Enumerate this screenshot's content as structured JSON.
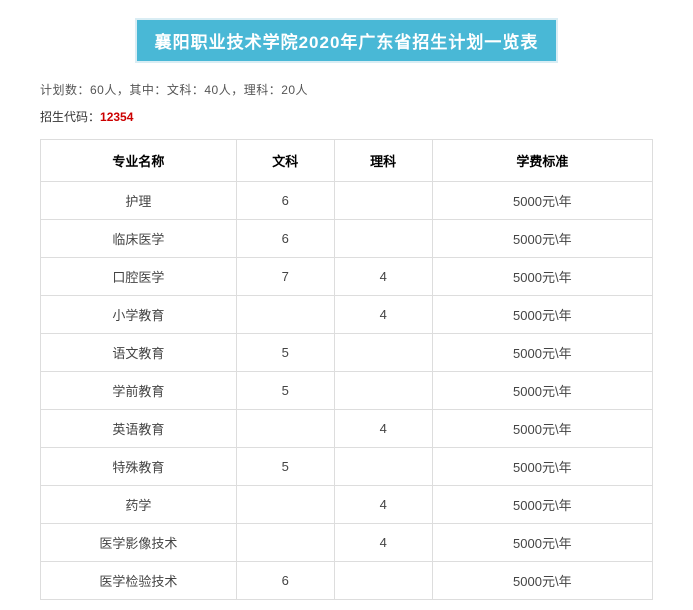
{
  "title_banner": "襄阳职业技术学院2020年广东省招生计划一览表",
  "summary_text": "计划数：60人，其中：文科：40人，理科：20人",
  "code_label": "招生代码：",
  "code_value": "12354",
  "table": {
    "columns": [
      "专业名称",
      "文科",
      "理科",
      "学费标准"
    ],
    "rows": [
      {
        "major": "护理",
        "wen": "6",
        "li": "",
        "fee": "5000元\\年"
      },
      {
        "major": "临床医学",
        "wen": "6",
        "li": "",
        "fee": "5000元\\年"
      },
      {
        "major": "口腔医学",
        "wen": "7",
        "li": "4",
        "fee": "5000元\\年"
      },
      {
        "major": "小学教育",
        "wen": "",
        "li": "4",
        "fee": "5000元\\年"
      },
      {
        "major": "语文教育",
        "wen": "5",
        "li": "",
        "fee": "5000元\\年"
      },
      {
        "major": "学前教育",
        "wen": "5",
        "li": "",
        "fee": "5000元\\年"
      },
      {
        "major": "英语教育",
        "wen": "",
        "li": "4",
        "fee": "5000元\\年"
      },
      {
        "major": "特殊教育",
        "wen": "5",
        "li": "",
        "fee": "5000元\\年"
      },
      {
        "major": "药学",
        "wen": "",
        "li": "4",
        "fee": "5000元\\年"
      },
      {
        "major": "医学影像技术",
        "wen": "",
        "li": "4",
        "fee": "5000元\\年"
      },
      {
        "major": "医学检验技术",
        "wen": "6",
        "li": "",
        "fee": "5000元\\年"
      }
    ]
  },
  "colors": {
    "banner_bg": "#49b8d6",
    "banner_border": "#d9edf4",
    "banner_text": "#ffffff",
    "code_value": "#cc0000",
    "table_border": "#dddddd",
    "body_text": "#333333"
  }
}
